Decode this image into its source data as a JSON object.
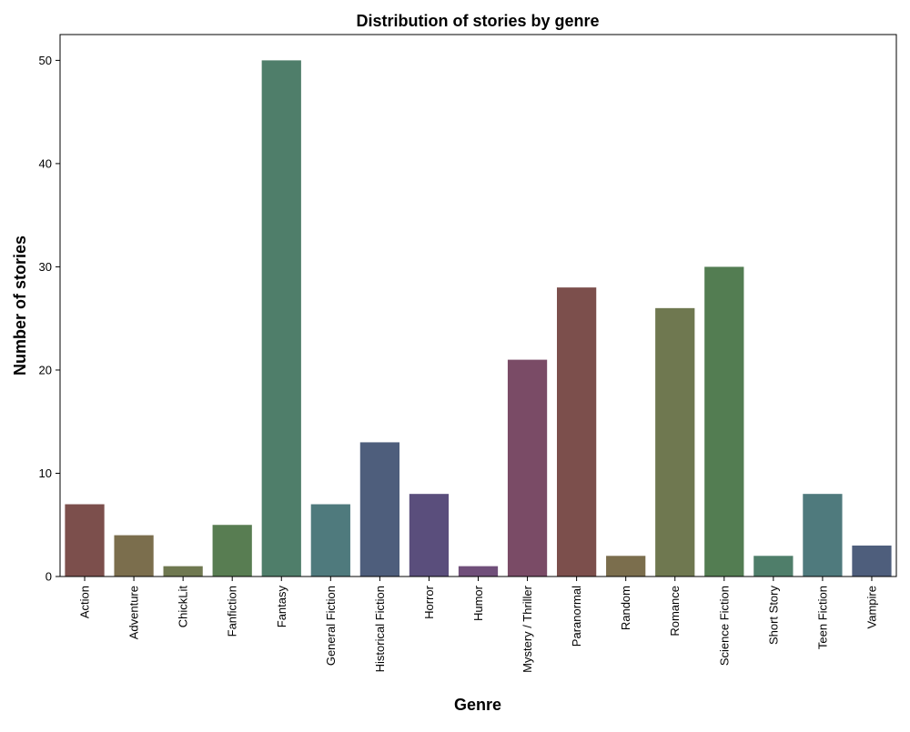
{
  "chart_data": {
    "type": "bar",
    "title": "Distribution of stories by genre",
    "xlabel": "Genre",
    "ylabel": "Number of stories",
    "ylim": [
      0,
      52.5
    ],
    "yticks": [
      0,
      10,
      20,
      30,
      40,
      50
    ],
    "grid": false,
    "categories": [
      "Action",
      "Adventure",
      "ChickLit",
      "Fanfiction",
      "Fantasy",
      "General Fiction",
      "Historical Fiction",
      "Horror",
      "Humor",
      "Mystery / Thriller",
      "Paranormal",
      "Random",
      "Romance",
      "Science Fiction",
      "Short Story",
      "Teen Fiction",
      "Vampire"
    ],
    "values": [
      7,
      4,
      1,
      5,
      50,
      7,
      13,
      8,
      1,
      21,
      28,
      2,
      26,
      30,
      2,
      8,
      3
    ],
    "colors": [
      "#7c4f4c",
      "#7b6e4d",
      "#6f7850",
      "#587d52",
      "#4f7e6a",
      "#4f7a7d",
      "#4e5e7c",
      "#5a4e7c",
      "#704f7a",
      "#7a4b66",
      "#7c4f4c",
      "#7b6e4d",
      "#6f7850",
      "#537d52",
      "#4f7e6a",
      "#4f7a7d",
      "#4e5e7c"
    ]
  }
}
